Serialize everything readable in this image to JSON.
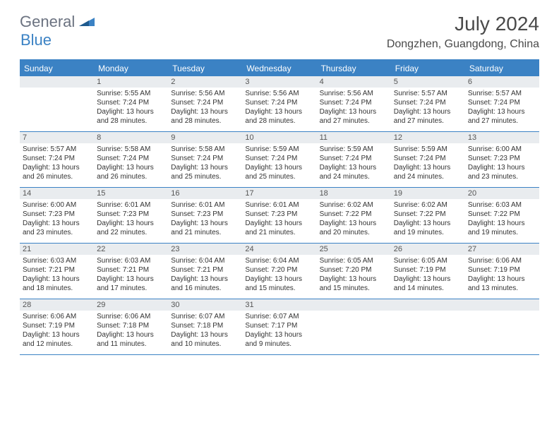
{
  "logo": {
    "general": "General",
    "blue": "Blue"
  },
  "title": "July 2024",
  "location": "Dongzhen, Guangdong, China",
  "colors": {
    "accent": "#3b82c4",
    "header_band": "#3b82c4",
    "day_num_bg": "#e9ecef",
    "text": "#333333",
    "title_text": "#4a4a4a",
    "background": "#ffffff"
  },
  "columns": [
    "Sunday",
    "Monday",
    "Tuesday",
    "Wednesday",
    "Thursday",
    "Friday",
    "Saturday"
  ],
  "layout": {
    "cols": 7,
    "rows": 5,
    "cell_font_size": 10,
    "header_font_size": 12
  },
  "weeks": [
    [
      {
        "blank": true
      },
      {
        "n": "1",
        "sr": "5:55 AM",
        "ss": "7:24 PM",
        "d1": "Daylight: 13 hours",
        "d2": "and 28 minutes."
      },
      {
        "n": "2",
        "sr": "5:56 AM",
        "ss": "7:24 PM",
        "d1": "Daylight: 13 hours",
        "d2": "and 28 minutes."
      },
      {
        "n": "3",
        "sr": "5:56 AM",
        "ss": "7:24 PM",
        "d1": "Daylight: 13 hours",
        "d2": "and 28 minutes."
      },
      {
        "n": "4",
        "sr": "5:56 AM",
        "ss": "7:24 PM",
        "d1": "Daylight: 13 hours",
        "d2": "and 27 minutes."
      },
      {
        "n": "5",
        "sr": "5:57 AM",
        "ss": "7:24 PM",
        "d1": "Daylight: 13 hours",
        "d2": "and 27 minutes."
      },
      {
        "n": "6",
        "sr": "5:57 AM",
        "ss": "7:24 PM",
        "d1": "Daylight: 13 hours",
        "d2": "and 27 minutes."
      }
    ],
    [
      {
        "n": "7",
        "sr": "5:57 AM",
        "ss": "7:24 PM",
        "d1": "Daylight: 13 hours",
        "d2": "and 26 minutes."
      },
      {
        "n": "8",
        "sr": "5:58 AM",
        "ss": "7:24 PM",
        "d1": "Daylight: 13 hours",
        "d2": "and 26 minutes."
      },
      {
        "n": "9",
        "sr": "5:58 AM",
        "ss": "7:24 PM",
        "d1": "Daylight: 13 hours",
        "d2": "and 25 minutes."
      },
      {
        "n": "10",
        "sr": "5:59 AM",
        "ss": "7:24 PM",
        "d1": "Daylight: 13 hours",
        "d2": "and 25 minutes."
      },
      {
        "n": "11",
        "sr": "5:59 AM",
        "ss": "7:24 PM",
        "d1": "Daylight: 13 hours",
        "d2": "and 24 minutes."
      },
      {
        "n": "12",
        "sr": "5:59 AM",
        "ss": "7:24 PM",
        "d1": "Daylight: 13 hours",
        "d2": "and 24 minutes."
      },
      {
        "n": "13",
        "sr": "6:00 AM",
        "ss": "7:23 PM",
        "d1": "Daylight: 13 hours",
        "d2": "and 23 minutes."
      }
    ],
    [
      {
        "n": "14",
        "sr": "6:00 AM",
        "ss": "7:23 PM",
        "d1": "Daylight: 13 hours",
        "d2": "and 23 minutes."
      },
      {
        "n": "15",
        "sr": "6:01 AM",
        "ss": "7:23 PM",
        "d1": "Daylight: 13 hours",
        "d2": "and 22 minutes."
      },
      {
        "n": "16",
        "sr": "6:01 AM",
        "ss": "7:23 PM",
        "d1": "Daylight: 13 hours",
        "d2": "and 21 minutes."
      },
      {
        "n": "17",
        "sr": "6:01 AM",
        "ss": "7:23 PM",
        "d1": "Daylight: 13 hours",
        "d2": "and 21 minutes."
      },
      {
        "n": "18",
        "sr": "6:02 AM",
        "ss": "7:22 PM",
        "d1": "Daylight: 13 hours",
        "d2": "and 20 minutes."
      },
      {
        "n": "19",
        "sr": "6:02 AM",
        "ss": "7:22 PM",
        "d1": "Daylight: 13 hours",
        "d2": "and 19 minutes."
      },
      {
        "n": "20",
        "sr": "6:03 AM",
        "ss": "7:22 PM",
        "d1": "Daylight: 13 hours",
        "d2": "and 19 minutes."
      }
    ],
    [
      {
        "n": "21",
        "sr": "6:03 AM",
        "ss": "7:21 PM",
        "d1": "Daylight: 13 hours",
        "d2": "and 18 minutes."
      },
      {
        "n": "22",
        "sr": "6:03 AM",
        "ss": "7:21 PM",
        "d1": "Daylight: 13 hours",
        "d2": "and 17 minutes."
      },
      {
        "n": "23",
        "sr": "6:04 AM",
        "ss": "7:21 PM",
        "d1": "Daylight: 13 hours",
        "d2": "and 16 minutes."
      },
      {
        "n": "24",
        "sr": "6:04 AM",
        "ss": "7:20 PM",
        "d1": "Daylight: 13 hours",
        "d2": "and 15 minutes."
      },
      {
        "n": "25",
        "sr": "6:05 AM",
        "ss": "7:20 PM",
        "d1": "Daylight: 13 hours",
        "d2": "and 15 minutes."
      },
      {
        "n": "26",
        "sr": "6:05 AM",
        "ss": "7:19 PM",
        "d1": "Daylight: 13 hours",
        "d2": "and 14 minutes."
      },
      {
        "n": "27",
        "sr": "6:06 AM",
        "ss": "7:19 PM",
        "d1": "Daylight: 13 hours",
        "d2": "and 13 minutes."
      }
    ],
    [
      {
        "n": "28",
        "sr": "6:06 AM",
        "ss": "7:19 PM",
        "d1": "Daylight: 13 hours",
        "d2": "and 12 minutes."
      },
      {
        "n": "29",
        "sr": "6:06 AM",
        "ss": "7:18 PM",
        "d1": "Daylight: 13 hours",
        "d2": "and 11 minutes."
      },
      {
        "n": "30",
        "sr": "6:07 AM",
        "ss": "7:18 PM",
        "d1": "Daylight: 13 hours",
        "d2": "and 10 minutes."
      },
      {
        "n": "31",
        "sr": "6:07 AM",
        "ss": "7:17 PM",
        "d1": "Daylight: 13 hours",
        "d2": "and 9 minutes."
      },
      {
        "blank": true
      },
      {
        "blank": true
      },
      {
        "blank": true
      }
    ]
  ],
  "labels": {
    "sunrise_prefix": "Sunrise: ",
    "sunset_prefix": "Sunset: "
  }
}
